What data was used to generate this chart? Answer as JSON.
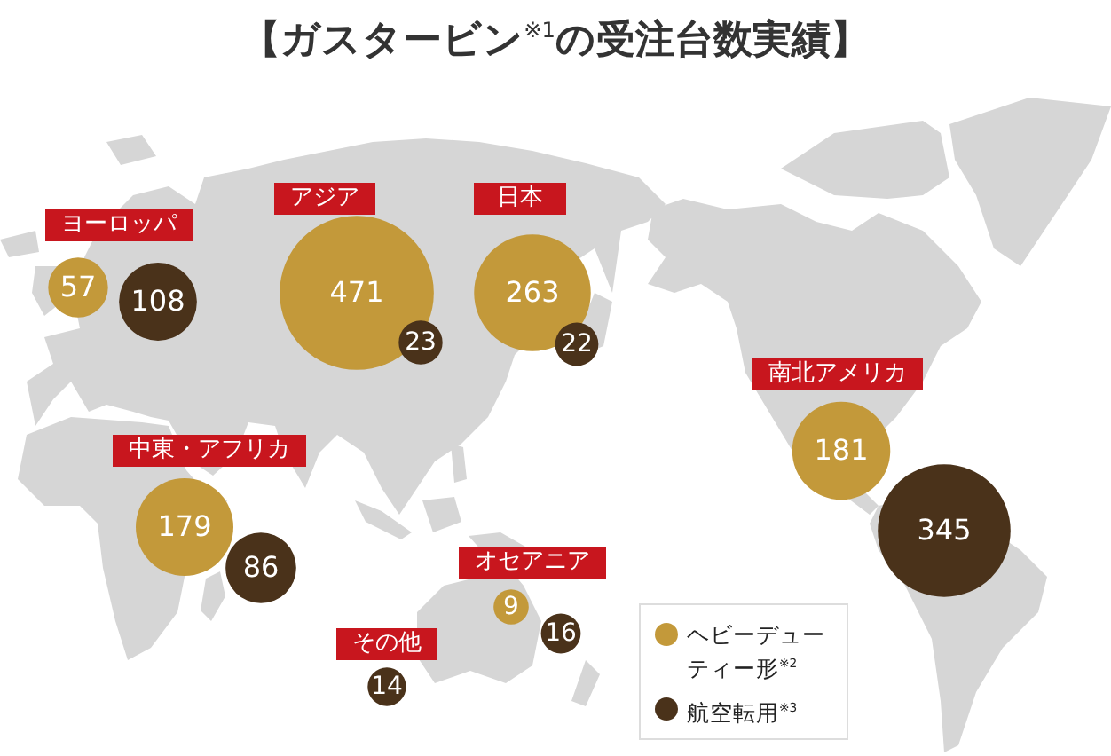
{
  "chart_data": {
    "type": "other",
    "title": "【ガスタービン$^{※1}$の受注台数実績】",
    "categories": [
      "アジア",
      "日本",
      "ヨーロッパ",
      "南北アメリカ",
      "中東・アフリカ",
      "オセアニア",
      "その他"
    ],
    "series": [
      {
        "name": "ヘビーデューティー形$^{※2}$",
        "color": "#c3993a",
        "values": [
          471,
          263,
          57,
          181,
          179,
          9,
          null
        ]
      },
      {
        "name": "航空転用$^{※3}$",
        "color": "#4a321a",
        "values": [
          23,
          22,
          108,
          345,
          86,
          16,
          14
        ]
      }
    ],
    "data_labels": true,
    "legend": "bottom right"
  }
}
